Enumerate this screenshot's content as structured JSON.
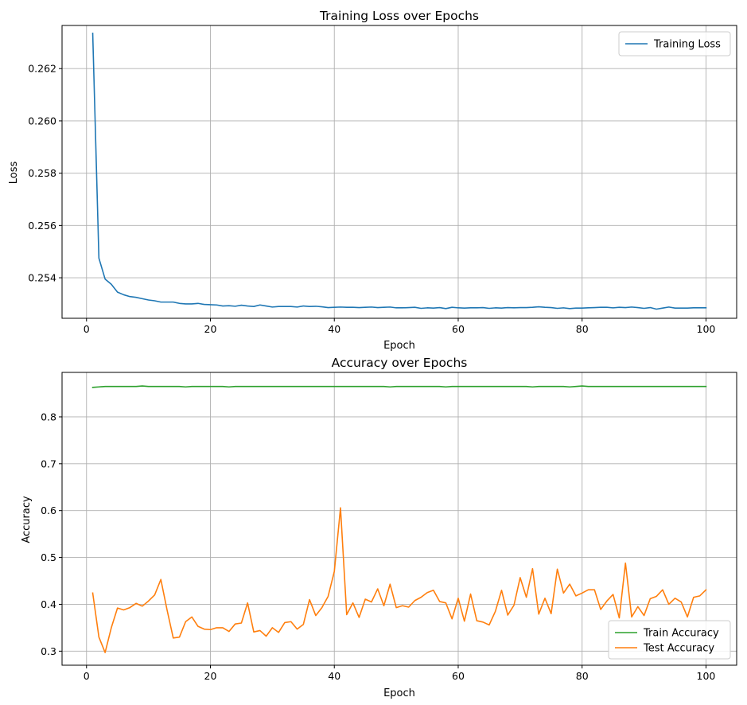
{
  "colors": {
    "training_loss": "#1f77b4",
    "train_accuracy": "#2ca02c",
    "test_accuracy": "#ff7f0e",
    "grid": "#b0b0b0",
    "background": "#ffffff"
  },
  "chart_data": [
    {
      "type": "line",
      "title": "Training Loss over Epochs",
      "xlabel": "Epoch",
      "ylabel": "Loss",
      "xlim": [
        -3.95,
        104.95
      ],
      "ylim": [
        0.25245,
        0.26365
      ],
      "xticks": [
        0,
        20,
        40,
        60,
        80,
        100
      ],
      "xtick_labels": [
        "0",
        "20",
        "40",
        "60",
        "80",
        "100"
      ],
      "yticks": [
        0.254,
        0.256,
        0.258,
        0.26,
        0.262
      ],
      "ytick_labels": [
        "0.254",
        "0.256",
        "0.258",
        "0.260",
        "0.262"
      ],
      "grid": true,
      "legend_position": "top-right",
      "series": [
        {
          "name": "Training Loss",
          "color": "#1f77b4",
          "x_start": 1,
          "values": [
            0.26335,
            0.25475,
            0.25395,
            0.25375,
            0.25345,
            0.25335,
            0.25328,
            0.25325,
            0.2532,
            0.25315,
            0.25312,
            0.25307,
            0.25307,
            0.25307,
            0.25302,
            0.253,
            0.253,
            0.25302,
            0.25298,
            0.25297,
            0.25296,
            0.25292,
            0.25293,
            0.25291,
            0.25295,
            0.25292,
            0.2529,
            0.25296,
            0.25292,
            0.25288,
            0.2529,
            0.2529,
            0.2529,
            0.25288,
            0.25292,
            0.2529,
            0.25291,
            0.25289,
            0.25286,
            0.25287,
            0.25288,
            0.25287,
            0.25287,
            0.25286,
            0.25287,
            0.25288,
            0.25286,
            0.25287,
            0.25288,
            0.25285,
            0.25285,
            0.25286,
            0.25287,
            0.25283,
            0.25285,
            0.25284,
            0.25286,
            0.25282,
            0.25287,
            0.25285,
            0.25284,
            0.25285,
            0.25285,
            0.25286,
            0.25283,
            0.25285,
            0.25284,
            0.25286,
            0.25285,
            0.25286,
            0.25286,
            0.25287,
            0.25289,
            0.25287,
            0.25286,
            0.25283,
            0.25285,
            0.25282,
            0.25284,
            0.25284,
            0.25285,
            0.25286,
            0.25287,
            0.25287,
            0.25285,
            0.25287,
            0.25286,
            0.25288,
            0.25286,
            0.25283,
            0.25286,
            0.2528,
            0.25284,
            0.25288,
            0.25284,
            0.25284,
            0.25284,
            0.25285,
            0.25285,
            0.25285
          ]
        }
      ]
    },
    {
      "type": "line",
      "title": "Accuracy over Epochs",
      "xlabel": "Epoch",
      "ylabel": "Accuracy",
      "xlim": [
        -3.95,
        104.95
      ],
      "ylim": [
        0.27,
        0.895
      ],
      "xticks": [
        0,
        20,
        40,
        60,
        80,
        100
      ],
      "xtick_labels": [
        "0",
        "20",
        "40",
        "60",
        "80",
        "100"
      ],
      "yticks": [
        0.3,
        0.4,
        0.5,
        0.6,
        0.7,
        0.8
      ],
      "ytick_labels": [
        "0.3",
        "0.4",
        "0.5",
        "0.6",
        "0.7",
        "0.8"
      ],
      "grid": true,
      "legend_position": "bottom-right",
      "series": [
        {
          "name": "Train Accuracy",
          "color": "#2ca02c",
          "x_start": 1,
          "values": [
            0.863,
            0.864,
            0.865,
            0.865,
            0.865,
            0.865,
            0.865,
            0.865,
            0.866,
            0.865,
            0.865,
            0.865,
            0.865,
            0.865,
            0.865,
            0.864,
            0.865,
            0.865,
            0.865,
            0.865,
            0.865,
            0.865,
            0.864,
            0.865,
            0.865,
            0.865,
            0.865,
            0.865,
            0.865,
            0.865,
            0.865,
            0.865,
            0.865,
            0.865,
            0.865,
            0.865,
            0.865,
            0.865,
            0.865,
            0.865,
            0.865,
            0.865,
            0.865,
            0.865,
            0.865,
            0.865,
            0.865,
            0.865,
            0.864,
            0.865,
            0.865,
            0.865,
            0.865,
            0.865,
            0.865,
            0.865,
            0.865,
            0.864,
            0.865,
            0.865,
            0.865,
            0.865,
            0.865,
            0.865,
            0.865,
            0.865,
            0.865,
            0.865,
            0.865,
            0.865,
            0.865,
            0.864,
            0.865,
            0.865,
            0.865,
            0.865,
            0.865,
            0.864,
            0.865,
            0.866,
            0.865,
            0.865,
            0.865,
            0.865,
            0.865,
            0.865,
            0.865,
            0.865,
            0.865,
            0.865,
            0.865,
            0.865,
            0.865,
            0.865,
            0.865,
            0.865,
            0.865,
            0.865,
            0.865,
            0.865
          ]
        },
        {
          "name": "Test Accuracy",
          "color": "#ff7f0e",
          "x_start": 1,
          "values": [
            0.424,
            0.33,
            0.297,
            0.35,
            0.392,
            0.388,
            0.393,
            0.402,
            0.396,
            0.407,
            0.42,
            0.453,
            0.388,
            0.328,
            0.33,
            0.363,
            0.373,
            0.353,
            0.347,
            0.346,
            0.35,
            0.35,
            0.342,
            0.358,
            0.36,
            0.403,
            0.341,
            0.344,
            0.332,
            0.35,
            0.34,
            0.361,
            0.363,
            0.347,
            0.357,
            0.41,
            0.376,
            0.393,
            0.417,
            0.47,
            0.606,
            0.378,
            0.403,
            0.372,
            0.411,
            0.405,
            0.433,
            0.397,
            0.443,
            0.393,
            0.397,
            0.394,
            0.408,
            0.415,
            0.425,
            0.43,
            0.406,
            0.403,
            0.369,
            0.413,
            0.364,
            0.422,
            0.365,
            0.362,
            0.356,
            0.385,
            0.43,
            0.377,
            0.398,
            0.457,
            0.415,
            0.476,
            0.379,
            0.413,
            0.38,
            0.475,
            0.424,
            0.443,
            0.418,
            0.424,
            0.431,
            0.431,
            0.389,
            0.407,
            0.421,
            0.371,
            0.488,
            0.373,
            0.395,
            0.376,
            0.412,
            0.417,
            0.431,
            0.4,
            0.413,
            0.405,
            0.373,
            0.415,
            0.418,
            0.431
          ]
        }
      ]
    }
  ]
}
